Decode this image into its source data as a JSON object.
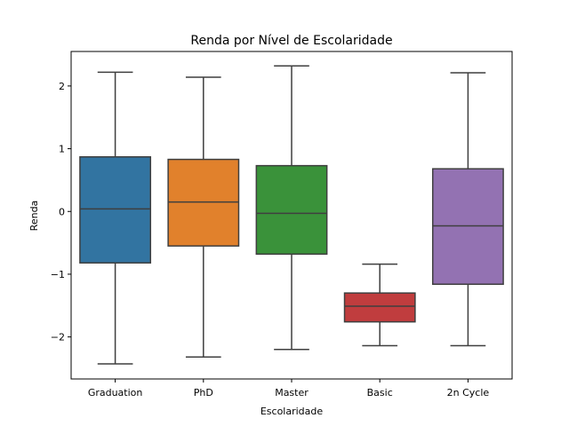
{
  "chart_data": {
    "type": "boxplot",
    "title": "Renda por Nível de Escolaridade",
    "xlabel": "Escolaridade",
    "ylabel": "Renda",
    "ylim": [
      -2.67,
      2.55
    ],
    "yticks": [
      2,
      1,
      0,
      -1,
      -2
    ],
    "ytick_labels": [
      "2",
      "1",
      "0",
      "−1",
      "−2"
    ],
    "grid": false,
    "categories": [
      "Graduation",
      "PhD",
      "Master",
      "Basic",
      "2n Cycle"
    ],
    "boxes": [
      {
        "category": "Graduation",
        "whisker_low": -2.43,
        "q1": -0.82,
        "median": 0.04,
        "q3": 0.87,
        "whisker_high": 2.22,
        "color": "#3274a1"
      },
      {
        "category": "PhD",
        "whisker_low": -2.32,
        "q1": -0.55,
        "median": 0.15,
        "q3": 0.83,
        "whisker_high": 2.14,
        "color": "#e1812c"
      },
      {
        "category": "Master",
        "whisker_low": -2.2,
        "q1": -0.68,
        "median": -0.03,
        "q3": 0.73,
        "whisker_high": 2.32,
        "color": "#3a923a"
      },
      {
        "category": "Basic",
        "whisker_low": -2.14,
        "q1": -1.76,
        "median": -1.51,
        "q3": -1.3,
        "whisker_high": -0.84,
        "color": "#c03d3e"
      },
      {
        "category": "2n Cycle",
        "whisker_low": -2.14,
        "q1": -1.16,
        "median": -0.23,
        "q3": 0.68,
        "whisker_high": 2.21,
        "color": "#9372b2"
      }
    ]
  }
}
